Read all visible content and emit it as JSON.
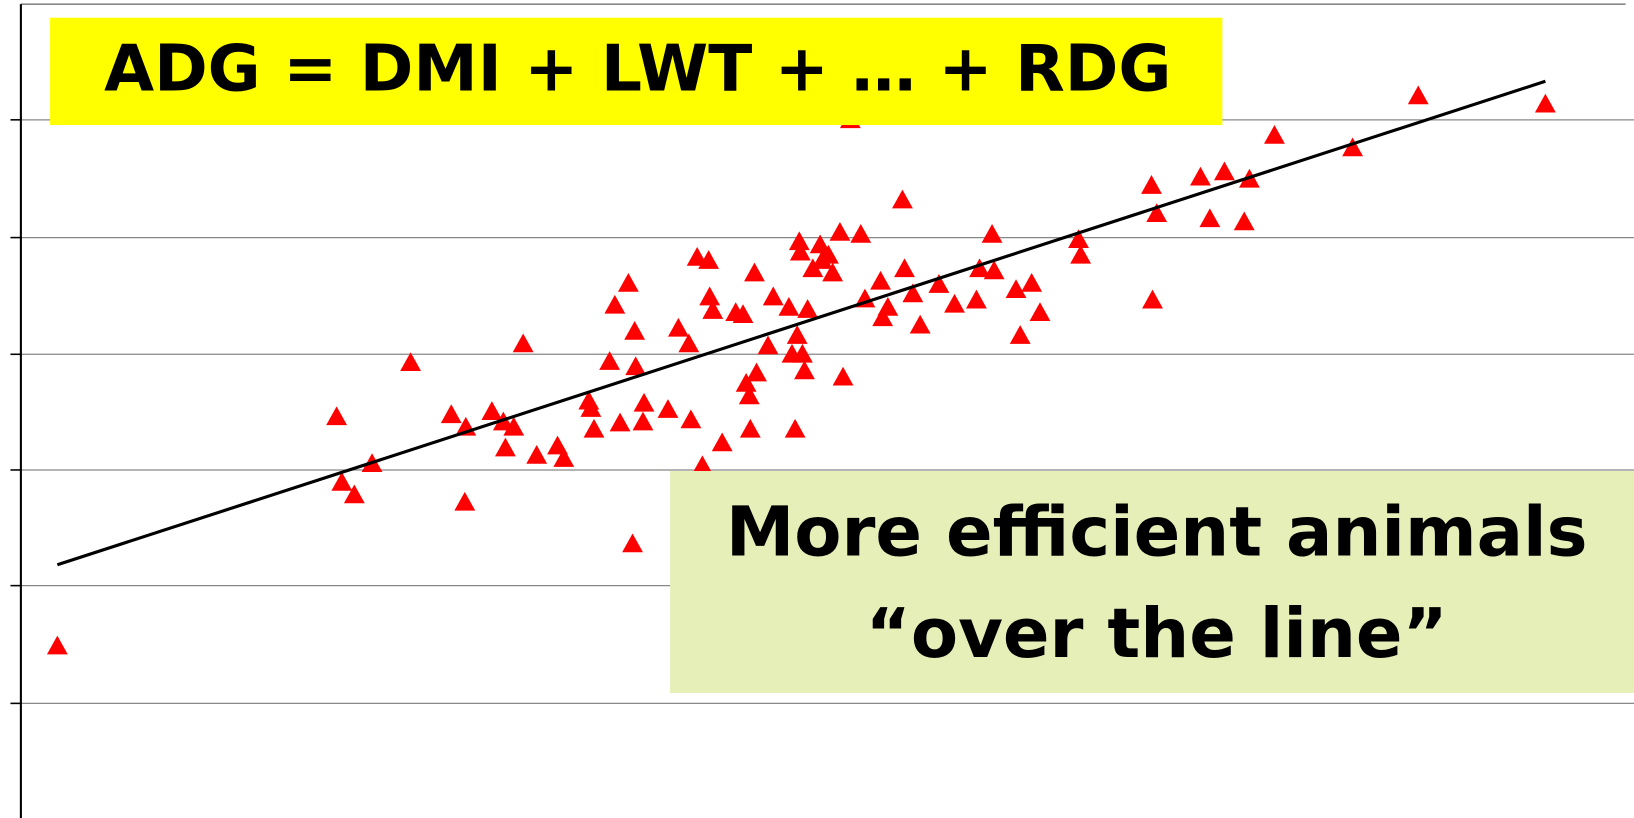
{
  "chart_data": {
    "type": "scatter",
    "annotations": [
      "ADG = DMI + LWT + … + RDG",
      "More efficient animals",
      "“over the line”"
    ],
    "xlim": [
      0,
      154
    ],
    "ylim": [
      0,
      780
    ],
    "ygrid": [
      110,
      223,
      334,
      445,
      557,
      670
    ],
    "grid": true,
    "series": [
      {
        "color": "#ff0000",
        "marker": "triangle",
        "x": [
          3.5,
          30.3,
          30.8,
          32,
          33.7,
          37.4,
          41.3,
          42.6,
          42.7,
          45.2,
          46.3,
          46.5,
          47.3,
          48.2,
          49.5,
          51.5,
          52.1,
          54.5,
          54.7,
          55,
          56.5,
          57,
          57.5,
          58.3,
          58.7,
          58.9,
          59,
          59.7,
          59.8,
          62.1,
          63.1,
          64.1,
          64.3,
          64.9,
          65.4,
          66,
          66.1,
          66.4,
          67.3,
          68.6,
          69.3,
          69.6,
          69.9,
          70,
          70.4,
          70.6,
          71.7,
          72.2,
          73.7,
          74,
          74.3,
          74.5,
          74.7,
          74.8,
          75,
          75.2,
          75.5,
          76,
          76.7,
          76.9,
          77.5,
          77.9,
          78.6,
          78.9,
          79.6,
          80.6,
          81,
          82.5,
          82.7,
          83.2,
          84.6,
          84.8,
          85.6,
          86.3,
          88.1,
          89.6,
          91.7,
          92,
          93.2,
          93.4,
          95.5,
          95.9,
          97,
          97.8,
          101.5,
          101.7,
          108.6,
          108.5,
          109,
          113.2,
          114.1,
          115.5,
          117.4,
          117.9,
          120.3,
          127.8,
          134.1,
          146.3
        ],
        "values": [
          165,
          385,
          322,
          310,
          340,
          437,
          387,
          303,
          375,
          390,
          380,
          355,
          375,
          455,
          348,
          357,
          345,
          400,
          393,
          373,
          438,
          492,
          379,
          513,
          263,
          467,
          433,
          380,
          398,
          392,
          470,
          455,
          382,
          538,
          338,
          535,
          500,
          487,
          360,
          485,
          483,
          417,
          405,
          373,
          523,
          427,
          453,
          500,
          490,
          445,
          373,
          463,
          553,
          543,
          445,
          429,
          488,
          527,
          550,
          535,
          540,
          523,
          562,
          423,
          670,
          560,
          498,
          515,
          480,
          490,
          593,
          527,
          503,
          473,
          512,
          493,
          497,
          527,
          560,
          525,
          507,
          463,
          513,
          485,
          555,
          540,
          497,
          607,
          580,
          615,
          575,
          620,
          572,
          613,
          655,
          643,
          693,
          685
        ]
      },
      {
        "color": "#000000",
        "marker": "line",
        "x": [
          3.5,
          146.3
        ],
        "values": [
          243,
          707
        ]
      }
    ]
  }
}
